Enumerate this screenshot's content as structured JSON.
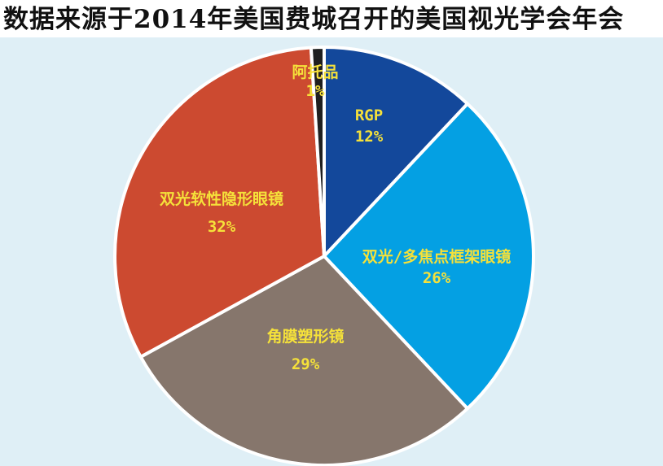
{
  "title": "数据来源于2014年美国费城召开的美国视光学会年会",
  "chart_data": {
    "type": "pie",
    "title": "数据来源于2014年美国费城召开的美国视光学会年会",
    "slices": [
      {
        "label": "RGP",
        "value": 12,
        "pct_label": "12%",
        "color": "#13489b"
      },
      {
        "label": "双光/多焦点框架眼镜",
        "value": 26,
        "pct_label": "26%",
        "color": "#04a0e3"
      },
      {
        "label": "角膜塑形镜",
        "value": 29,
        "pct_label": "29%",
        "color": "#86766c"
      },
      {
        "label": "双光软性隐形眼镜",
        "value": 32,
        "pct_label": "32%",
        "color": "#cc4a30"
      },
      {
        "label": "阿托品",
        "value": 1,
        "pct_label": "1%",
        "color": "#1f1f1f"
      }
    ],
    "label_color": "#f5e13a",
    "legend": "none"
  }
}
